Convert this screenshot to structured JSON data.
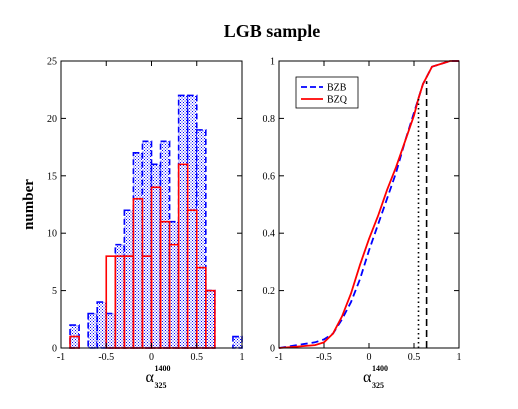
{
  "title": "LGB sample",
  "colors": {
    "bzb": "#0000ff",
    "bzq": "#ff0000",
    "bzb_fill": "#c8c8ee"
  },
  "chart_data": [
    {
      "type": "bar",
      "name": "histogram",
      "ylabel": "number",
      "xlabel": {
        "main": "α",
        "sup": "1400",
        "sub": "325"
      },
      "xlim": [
        -1,
        1
      ],
      "ylim": [
        0,
        25
      ],
      "xticks": [
        -1,
        -0.5,
        0,
        0.5,
        1
      ],
      "xtick_labels": [
        "-1",
        "-0.5",
        "0",
        "0.5",
        "1"
      ],
      "yticks": [
        0,
        5,
        10,
        15,
        20,
        25
      ],
      "ytick_labels": [
        "0",
        "5",
        "10",
        "15",
        "20",
        "25"
      ],
      "bin_width": 0.1,
      "bin_centers": [
        -0.85,
        -0.75,
        -0.65,
        -0.55,
        -0.45,
        -0.35,
        -0.25,
        -0.15,
        -0.05,
        0.05,
        0.15,
        0.25,
        0.35,
        0.45,
        0.55,
        0.65,
        0.75,
        0.85,
        0.95
      ],
      "series": [
        {
          "name": "BZB",
          "values": [
            2,
            0,
            3,
            4,
            3,
            9,
            12,
            17,
            18,
            16,
            18,
            11,
            22,
            22,
            19,
            5,
            0,
            0,
            1
          ]
        },
        {
          "name": "BZQ",
          "values": [
            1,
            0,
            0,
            0,
            8,
            8,
            8,
            13,
            8,
            14,
            11,
            9,
            16,
            12,
            7,
            5,
            0,
            0,
            0
          ]
        }
      ]
    },
    {
      "type": "line",
      "name": "cumulative",
      "xlabel": {
        "main": "α",
        "sup": "1400",
        "sub": "325"
      },
      "xlim": [
        -1,
        1
      ],
      "ylim": [
        0,
        1
      ],
      "xticks": [
        -1,
        -0.5,
        0,
        0.5,
        1
      ],
      "xtick_labels": [
        "-1",
        "-0.5",
        "0",
        "0.5",
        "1"
      ],
      "yticks": [
        0,
        0.2,
        0.4,
        0.6,
        0.8,
        1
      ],
      "ytick_labels": [
        "0",
        "0.2",
        "0.4",
        "0.6",
        "0.8",
        "1"
      ],
      "legend": [
        "BZB",
        "BZQ"
      ],
      "legend_position": "top-left",
      "series": [
        {
          "name": "BZB",
          "style": "dashed",
          "x": [
            -1,
            -0.8,
            -0.6,
            -0.5,
            -0.4,
            -0.3,
            -0.2,
            -0.1,
            0,
            0.1,
            0.2,
            0.3,
            0.4,
            0.5,
            0.55,
            0.6,
            0.7,
            0.8,
            0.9,
            1
          ],
          "y": [
            0,
            0.01,
            0.02,
            0.03,
            0.05,
            0.1,
            0.16,
            0.24,
            0.34,
            0.43,
            0.52,
            0.61,
            0.72,
            0.82,
            0.87,
            0.92,
            0.98,
            0.99,
            1,
            1
          ]
        },
        {
          "name": "BZQ",
          "style": "solid",
          "x": [
            -1,
            -0.8,
            -0.6,
            -0.5,
            -0.4,
            -0.3,
            -0.2,
            -0.1,
            0,
            0.1,
            0.2,
            0.3,
            0.4,
            0.5,
            0.55,
            0.6,
            0.7,
            0.8,
            0.9,
            1
          ],
          "y": [
            0,
            0.005,
            0.01,
            0.02,
            0.05,
            0.11,
            0.19,
            0.29,
            0.38,
            0.46,
            0.55,
            0.63,
            0.72,
            0.81,
            0.87,
            0.92,
            0.98,
            0.99,
            1,
            1
          ]
        }
      ],
      "vlines": [
        {
          "x": 0.55,
          "style": "dotted",
          "ymax": 0.87
        },
        {
          "x": 0.64,
          "style": "dashed",
          "ymax": 0.93
        }
      ]
    }
  ]
}
